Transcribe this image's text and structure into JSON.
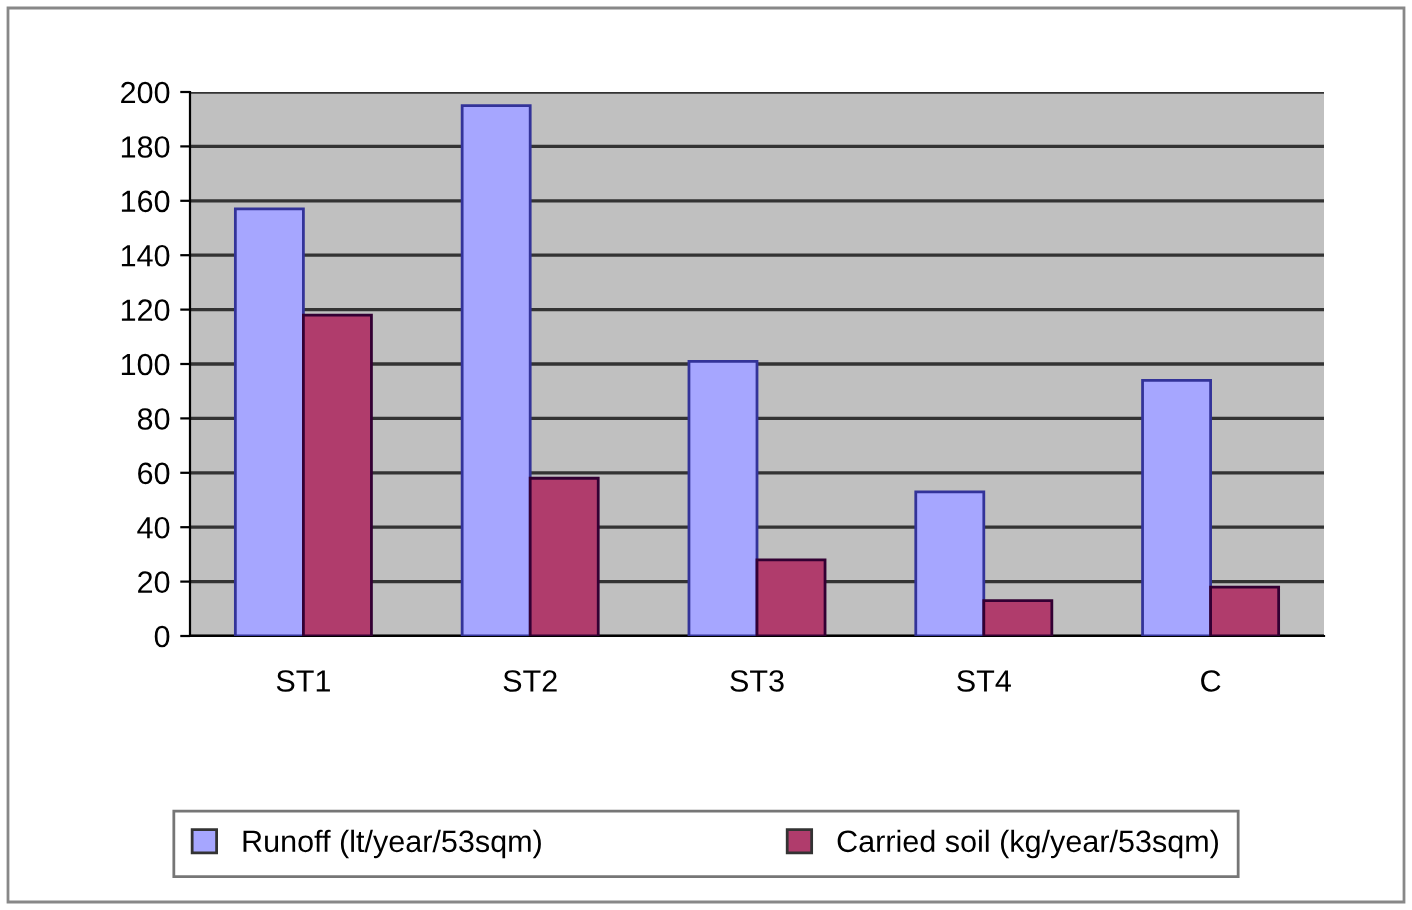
{
  "chart_data": {
    "type": "bar",
    "categories": [
      "ST1",
      "ST2",
      "ST3",
      "ST4",
      "C"
    ],
    "series": [
      {
        "name": "Runoff (lt/year/53sqm)",
        "color": "#a6a6ff",
        "values": [
          157,
          195,
          101,
          53,
          94
        ]
      },
      {
        "name": "Carried soil (kg/year/53sqm)",
        "color": "#b03c6c",
        "values": [
          118,
          58,
          28,
          13,
          18
        ]
      }
    ],
    "ylim": [
      0,
      200
    ],
    "yticks": [
      0,
      20,
      40,
      60,
      80,
      100,
      120,
      140,
      160,
      180,
      200
    ],
    "grid": "y",
    "legend": "bottom"
  }
}
